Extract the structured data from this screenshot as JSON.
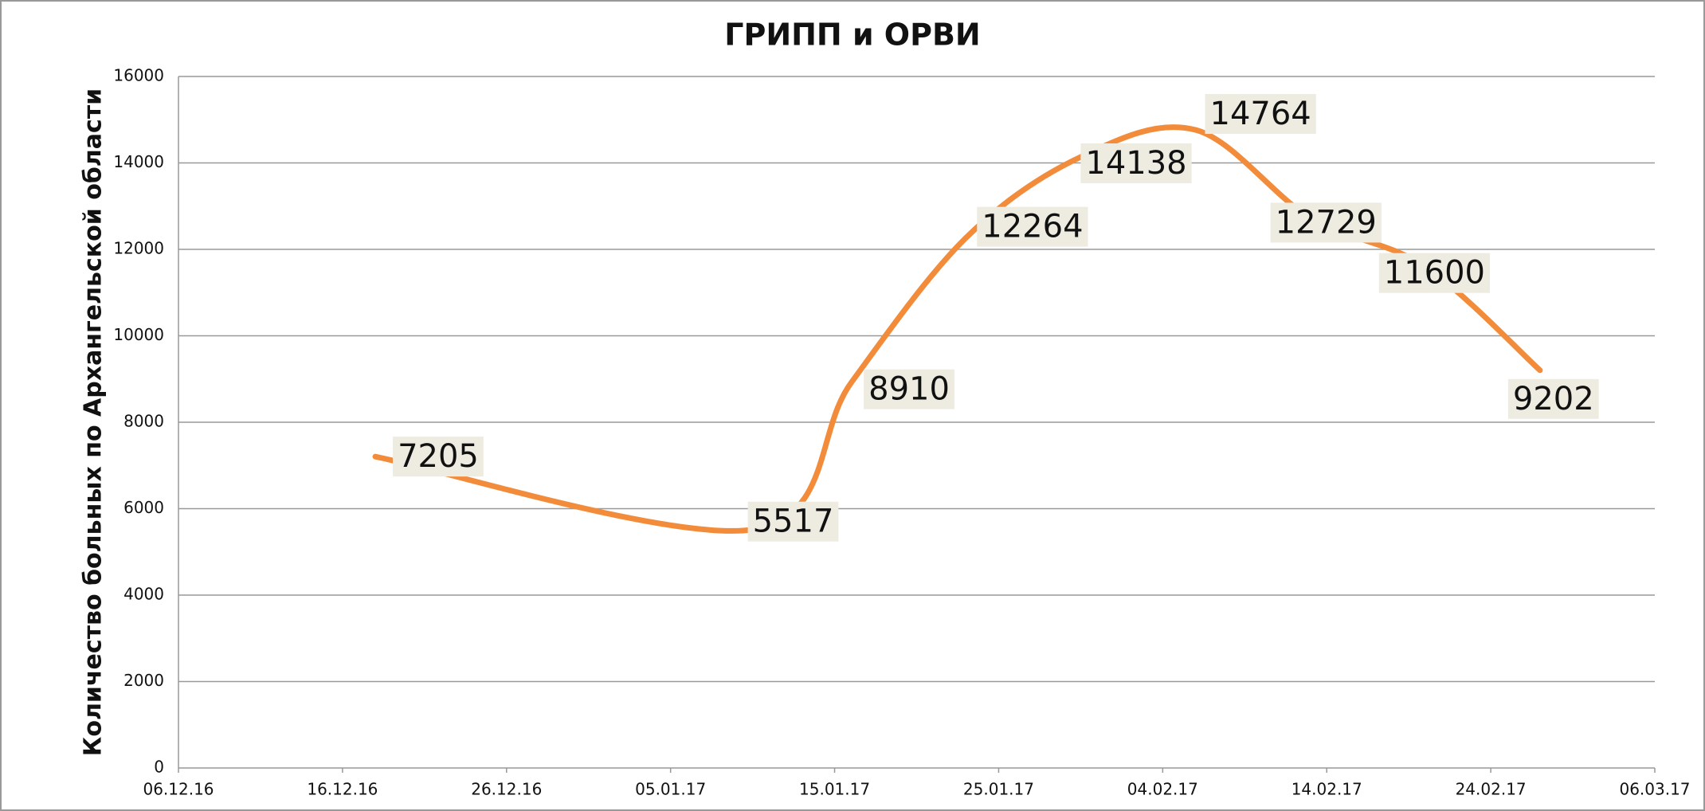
{
  "chart_data": {
    "type": "line",
    "title": "ГРИПП и ОРВИ",
    "y_label": "Количество больных по Архангельской области",
    "x": [
      "2016-12-18",
      "2017-01-10",
      "2017-01-16",
      "2017-01-23",
      "2017-01-30",
      "2017-02-06",
      "2017-02-13",
      "2017-02-20",
      "2017-02-27"
    ],
    "series": [
      {
        "name": "ГРИПП и ОРВИ",
        "color": "#f28c3a",
        "values": [
          7205,
          5517,
          8910,
          12264,
          14138,
          14764,
          12729,
          11600,
          9202
        ]
      }
    ],
    "xlim": [
      "2016-12-06",
      "2017-03-06"
    ],
    "xticks": [
      {
        "value": "2016-12-06",
        "label": "06.12.16"
      },
      {
        "value": "2016-12-16",
        "label": "16.12.16"
      },
      {
        "value": "2016-12-26",
        "label": "26.12.16"
      },
      {
        "value": "2017-01-05",
        "label": "05.01.17"
      },
      {
        "value": "2017-01-15",
        "label": "15.01.17"
      },
      {
        "value": "2017-01-25",
        "label": "25.01.17"
      },
      {
        "value": "2017-02-04",
        "label": "04.02.17"
      },
      {
        "value": "2017-02-14",
        "label": "14.02.17"
      },
      {
        "value": "2017-02-24",
        "label": "24.02.17"
      },
      {
        "value": "2017-03-06",
        "label": "06.03.17"
      }
    ],
    "ylim": [
      0,
      16000
    ],
    "yticks": [
      0,
      2000,
      4000,
      6000,
      8000,
      10000,
      12000,
      14000,
      16000
    ],
    "grid": true
  }
}
